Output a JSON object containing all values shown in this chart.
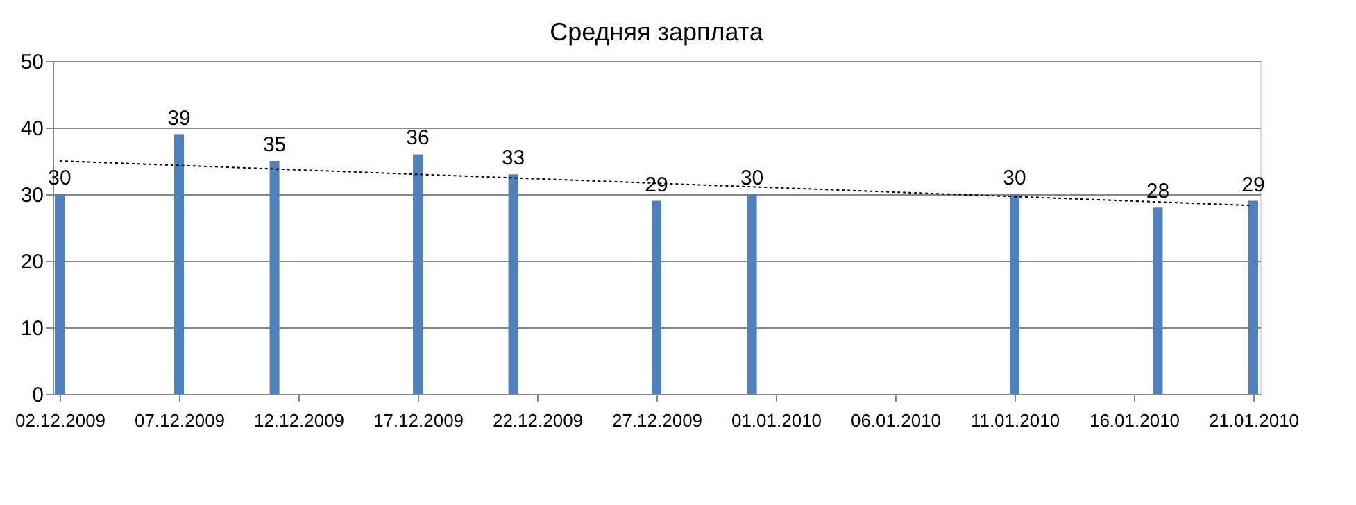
{
  "chart_data": {
    "type": "bar",
    "title": "Средняя зарплата",
    "x": [
      "2009-12-02",
      "2009-12-07",
      "2009-12-11",
      "2009-12-17",
      "2009-12-21",
      "2009-12-27",
      "2009-12-31",
      "2010-01-11",
      "2010-01-17",
      "2010-01-21"
    ],
    "series": [
      {
        "color": "#4f81bd",
        "values": [
          30,
          39,
          35,
          36,
          33,
          29,
          30,
          30,
          28,
          29
        ],
        "value_labels": [
          "30",
          "39",
          "35",
          "36",
          "33",
          "29",
          "30",
          "30",
          "28",
          "29"
        ]
      },
      {
        "type": "line",
        "color": "#000000",
        "line_style": "dotted",
        "x": [
          "2009-12-02",
          "2010-01-21"
        ],
        "values": [
          35,
          28.3
        ]
      }
    ],
    "xlim": [
      "2009-12-02",
      "2010-01-21"
    ],
    "xticks": [
      {
        "value": "2009-12-02",
        "label": "02.12.2009"
      },
      {
        "value": "2009-12-07",
        "label": "07.12.2009"
      },
      {
        "value": "2009-12-12",
        "label": "12.12.2009"
      },
      {
        "value": "2009-12-17",
        "label": "17.12.2009"
      },
      {
        "value": "2009-12-22",
        "label": "22.12.2009"
      },
      {
        "value": "2009-12-27",
        "label": "27.12.2009"
      },
      {
        "value": "2010-01-01",
        "label": "01.01.2010"
      },
      {
        "value": "2010-01-06",
        "label": "06.01.2010"
      },
      {
        "value": "2010-01-11",
        "label": "11.01.2010"
      },
      {
        "value": "2010-01-16",
        "label": "16.01.2010"
      },
      {
        "value": "2010-01-21",
        "label": "21.01.2010"
      }
    ],
    "ylim": [
      0,
      50
    ],
    "yticks": [
      0,
      10,
      20,
      30,
      40,
      50
    ],
    "grid": "y"
  }
}
